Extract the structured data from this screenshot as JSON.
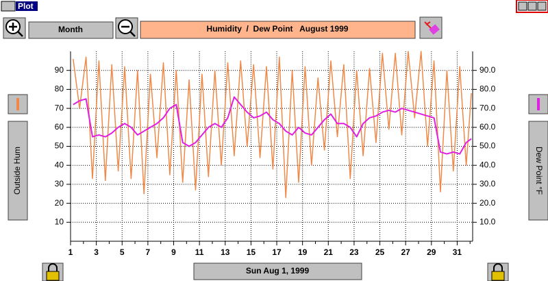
{
  "window": {
    "title": "Plot",
    "period_button": "Month",
    "date_button": "Sun Aug 1, 1999"
  },
  "chart_data": {
    "type": "line",
    "title": "Humidity  /  Dew Point   August 1999",
    "x": [
      1.2,
      1.7,
      2.2,
      2.7,
      3.2,
      3.7,
      4.2,
      4.7,
      5.2,
      5.7,
      6.2,
      6.7,
      7.2,
      7.7,
      8.2,
      8.7,
      9.2,
      9.7,
      10.2,
      10.7,
      11.2,
      11.7,
      12.2,
      12.7,
      13.2,
      13.7,
      14.2,
      14.7,
      15.2,
      15.7,
      16.2,
      16.7,
      17.2,
      17.7,
      18.2,
      18.7,
      19.2,
      19.7,
      20.2,
      20.7,
      21.2,
      21.7,
      22.2,
      22.7,
      23.2,
      23.7,
      24.2,
      24.7,
      25.2,
      25.7,
      26.2,
      26.7,
      27.2,
      27.7,
      28.2,
      28.7,
      29.2,
      29.7,
      30.2,
      30.7,
      31.2,
      31.7,
      32.1
    ],
    "series": [
      {
        "name": "Outside Hum",
        "color": "#f08848",
        "values": [
          96,
          70,
          97,
          33,
          95,
          32,
          93,
          37,
          92,
          33,
          90,
          25,
          88,
          44,
          94,
          35,
          90,
          31,
          85,
          27,
          88,
          34,
          90,
          40,
          94,
          45,
          95,
          50,
          93,
          44,
          92,
          38,
          97,
          23,
          90,
          31,
          92,
          40,
          86,
          48,
          95,
          55,
          93,
          33,
          90,
          45,
          91,
          52,
          99,
          59,
          99,
          56,
          100,
          65,
          100,
          50,
          95,
          26,
          90,
          37,
          92,
          40,
          78
        ]
      },
      {
        "name": "Dew Point °F",
        "color": "#e020e0",
        "axis": "y2",
        "values": [
          72,
          74,
          75,
          55,
          56,
          55,
          57,
          60,
          62,
          60,
          56,
          58,
          60,
          62,
          65,
          70,
          72,
          52,
          50,
          52,
          56,
          60,
          62,
          60,
          65,
          76,
          72,
          68,
          65,
          66,
          68,
          64,
          62,
          58,
          56,
          60,
          57,
          56,
          60,
          64,
          67,
          62,
          62,
          60,
          55,
          62,
          65,
          66,
          68,
          69,
          68,
          70,
          69,
          68,
          67,
          66,
          65,
          47,
          46,
          47,
          46,
          52,
          54
        ]
      }
    ],
    "xlim": [
      1,
      32.2
    ],
    "xticks": [
      1,
      3,
      5,
      7,
      9,
      11,
      13,
      15,
      17,
      19,
      21,
      23,
      25,
      27,
      29,
      31
    ],
    "xminorticks": [
      2,
      4,
      6,
      8,
      10,
      12,
      14,
      16,
      18,
      20,
      22,
      24,
      26,
      28,
      30,
      32
    ],
    "ylim": [
      0,
      100
    ],
    "yticks": [
      10,
      20,
      30,
      40,
      50,
      60,
      70,
      80,
      90
    ],
    "y2lim": [
      0,
      100
    ],
    "y2ticks": [
      {
        "value": 10,
        "label": "10.0"
      },
      {
        "value": 20,
        "label": "20.0"
      },
      {
        "value": 30,
        "label": "30.0"
      },
      {
        "value": 40,
        "label": "40.0"
      },
      {
        "value": 50,
        "label": "50.0"
      },
      {
        "value": 60,
        "label": "60.0"
      },
      {
        "value": 70,
        "label": "70.0"
      },
      {
        "value": 80,
        "label": "80.0"
      },
      {
        "value": 90,
        "label": "90.0"
      }
    ],
    "grid": true
  }
}
